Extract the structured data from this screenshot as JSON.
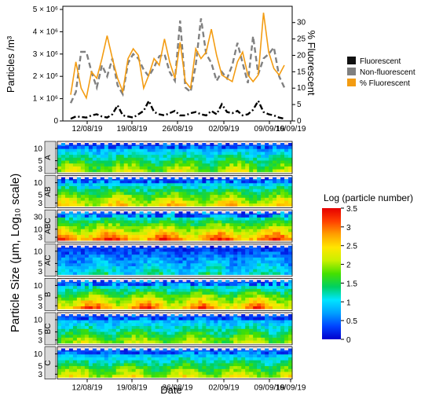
{
  "chart_data": [
    {
      "type": "line",
      "ylabel_left": "Particles /m³",
      "ylabel_right": "% Fluorescent",
      "ylim_left": [
        0,
        5000000
      ],
      "ylim_right": [
        0,
        34
      ],
      "yticks_left": [
        "0",
        "1 × 10⁶",
        "2 × 10⁶",
        "3 × 10⁶",
        "4 × 10⁶",
        "5 × 10⁶"
      ],
      "yticks_right": [
        "0",
        "5",
        "10",
        "15",
        "20",
        "25",
        "30"
      ],
      "x": [
        0,
        1,
        2,
        3,
        4,
        5,
        6,
        7,
        8,
        9,
        10,
        11,
        12,
        13,
        14,
        15,
        16,
        17,
        18,
        19,
        20,
        21,
        22,
        23,
        24,
        25,
        26,
        27,
        28,
        29,
        30,
        31,
        32,
        33,
        34,
        35,
        36,
        37,
        38,
        39,
        40,
        41
      ],
      "legend_position": "right",
      "series": [
        {
          "name": "Fluorescent",
          "color": "#000000",
          "dash": "dashdot",
          "axis": "left",
          "values": [
            100000,
            200000,
            180000,
            150000,
            250000,
            300000,
            200000,
            150000,
            300000,
            700000,
            250000,
            200000,
            150000,
            300000,
            450000,
            900000,
            400000,
            300000,
            250000,
            350000,
            450000,
            250000,
            250000,
            350000,
            400000,
            300000,
            250000,
            450000,
            300000,
            750000,
            400000,
            350000,
            450000,
            250000,
            300000,
            500000,
            900000,
            400000,
            300000,
            250000,
            150000,
            100000
          ]
        },
        {
          "name": "Non-fluorescent",
          "color": "#808080",
          "dash": "dashed",
          "axis": "left",
          "values": [
            800000,
            1300000,
            3100000,
            3100000,
            2200000,
            1500000,
            2500000,
            2000000,
            2800000,
            1600000,
            1200000,
            2600000,
            3000000,
            2800000,
            2300000,
            2000000,
            2400000,
            2900000,
            3000000,
            2200000,
            1800000,
            4500000,
            1500000,
            1300000,
            2500000,
            4600000,
            3000000,
            2600000,
            1800000,
            2200000,
            1900000,
            2500000,
            3500000,
            2600000,
            1700000,
            3800000,
            2100000,
            2800000,
            3000000,
            3300000,
            2000000,
            1500000
          ]
        },
        {
          "name": "% Fluorescent",
          "color": "#f39c12",
          "dash": "solid",
          "axis": "right",
          "values": [
            8,
            18,
            10,
            7,
            15,
            13,
            19,
            26,
            19,
            13,
            9,
            19,
            22,
            20,
            10,
            14,
            19,
            17,
            25,
            18,
            13,
            24,
            12,
            10,
            22,
            19,
            21,
            28,
            20,
            14,
            13,
            12,
            18,
            21,
            14,
            12,
            14,
            33,
            21,
            16,
            14,
            17
          ]
        }
      ]
    },
    {
      "type": "heatmap",
      "ylabel": "Particle Size (μm, Log₁₀ scale)",
      "xlabel": "Date",
      "xticks": [
        "12/08/19",
        "19/08/19",
        "26/08/19",
        "02/09/19",
        "09/09/19",
        "16/09/19"
      ],
      "colorbar_label": "Log (particle number)",
      "colorbar_range": [
        0,
        3.5
      ],
      "colorbar_ticks": [
        "0",
        "0.5",
        "1",
        "1.5",
        "2",
        "2.5",
        "3",
        "3.5"
      ],
      "colorbar_colors": [
        "#0000cd",
        "#0044ff",
        "#00a0ff",
        "#00e5ff",
        "#00d060",
        "#44e000",
        "#c8f000",
        "#ffe600",
        "#ffa000",
        "#ff4000",
        "#e60000"
      ],
      "panels": [
        {
          "label": "A",
          "yticks": [
            "10",
            "5",
            "3"
          ],
          "base_level": 1.4,
          "peak_level": 2.1
        },
        {
          "label": "AB",
          "yticks": [
            "10",
            "5",
            "3"
          ],
          "base_level": 1.7,
          "peak_level": 2.4
        },
        {
          "label": "ABC",
          "yticks": [
            "30",
            "10",
            "3"
          ],
          "base_level": 2.1,
          "peak_level": 2.9
        },
        {
          "label": "AC",
          "yticks": [
            "10",
            "5",
            "3"
          ],
          "base_level": 0.7,
          "peak_level": 1.3
        },
        {
          "label": "B",
          "yticks": [
            "10",
            "5",
            "3"
          ],
          "base_level": 1.9,
          "peak_level": 2.8
        },
        {
          "label": "BC",
          "yticks": [
            "10",
            "5",
            "3"
          ],
          "base_level": 1.4,
          "peak_level": 2.0
        },
        {
          "label": "C",
          "yticks": [
            "10",
            "5",
            "3"
          ],
          "base_level": 1.5,
          "peak_level": 2.2
        }
      ]
    }
  ]
}
